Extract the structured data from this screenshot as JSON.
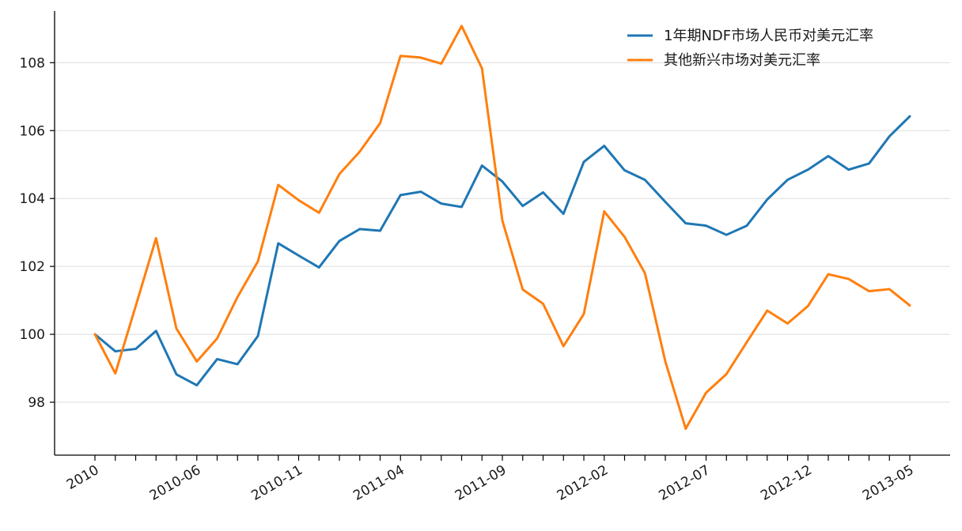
{
  "chart_data": {
    "type": "line",
    "x_tick_labels": [
      "2010",
      "2010-06",
      "2010-11",
      "2011-04",
      "2011-09",
      "2012-02",
      "2012-07",
      "2012-12",
      "2013-05"
    ],
    "yticks": [
      98,
      100,
      102,
      104,
      106,
      108
    ],
    "ylim": [
      96.7,
      109.7
    ],
    "grid": {
      "y": true,
      "x": false
    },
    "legend_position": "top-right",
    "colors": {
      "series1": "#1f77b4",
      "series2": "#ff7f0e",
      "grid": "#dddddd",
      "axis": "#000000"
    },
    "series": [
      {
        "name": "1年期NDF市场人民币对美元汇率",
        "values": [
          100.0,
          99.5,
          99.57,
          100.1,
          98.82,
          98.5,
          99.27,
          99.12,
          99.95,
          102.68,
          102.32,
          101.97,
          102.75,
          103.1,
          103.05,
          104.1,
          104.2,
          103.85,
          103.75,
          104.97,
          104.5,
          103.78,
          104.18,
          103.55,
          105.08,
          105.55,
          104.83,
          104.55,
          103.9,
          103.27,
          103.2,
          102.93,
          103.2,
          103.97,
          104.55,
          104.85,
          105.25,
          104.85,
          105.03,
          105.83,
          106.42
        ]
      },
      {
        "name": "其他新兴市场对美元汇率",
        "values": [
          100.0,
          98.85,
          100.83,
          102.83,
          100.17,
          99.2,
          99.88,
          101.1,
          102.15,
          104.4,
          103.95,
          103.58,
          104.72,
          105.38,
          106.22,
          108.2,
          108.15,
          107.97,
          109.08,
          107.83,
          103.35,
          101.32,
          100.9,
          99.65,
          100.6,
          103.62,
          102.87,
          101.8,
          99.2,
          97.22,
          98.28,
          98.83,
          99.77,
          100.7,
          100.32,
          100.83,
          101.77,
          101.63,
          101.27,
          101.33,
          100.85
        ]
      }
    ]
  }
}
